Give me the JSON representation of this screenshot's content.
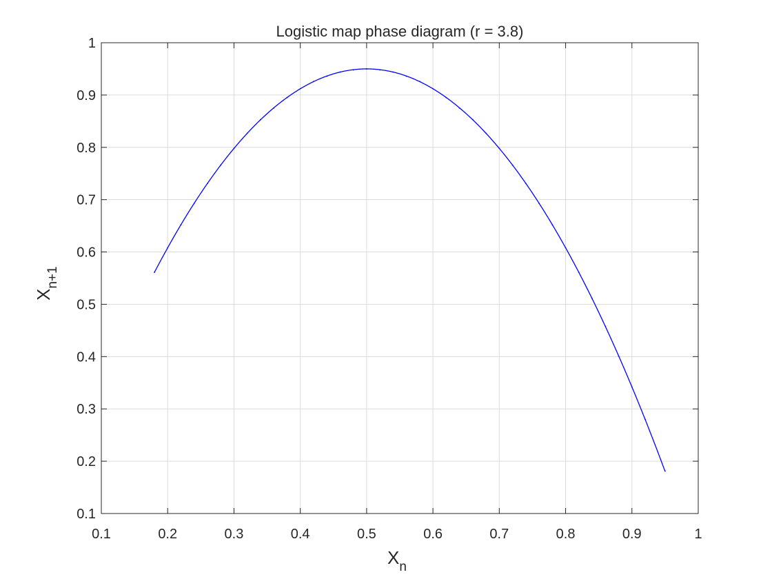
{
  "chart_data": {
    "type": "scatter",
    "title": "Logistic map phase diagram (r = 3.8)",
    "xlabel": {
      "base": "X",
      "subscript": "n"
    },
    "ylabel": {
      "base": "X",
      "subscript": "n+1"
    },
    "xlim": [
      0.1,
      1
    ],
    "ylim": [
      0.1,
      1
    ],
    "xticks": [
      0.1,
      0.2,
      0.3,
      0.4,
      0.5,
      0.6,
      0.7,
      0.8,
      0.9,
      1
    ],
    "yticks": [
      0.1,
      0.2,
      0.3,
      0.4,
      0.5,
      0.6,
      0.7,
      0.8,
      0.9,
      1
    ],
    "xtick_labels": [
      "0.1",
      "0.2",
      "0.3",
      "0.4",
      "0.5",
      "0.6",
      "0.7",
      "0.8",
      "0.9",
      "1"
    ],
    "ytick_labels": [
      "0.1",
      "0.2",
      "0.3",
      "0.4",
      "0.5",
      "0.6",
      "0.7",
      "0.8",
      "0.9",
      "1"
    ],
    "grid": true,
    "series": [
      {
        "color": "#0000ff",
        "marker": "point",
        "r": 3.8,
        "x": [
          0.18,
          0.2,
          0.22,
          0.24,
          0.26,
          0.28,
          0.3,
          0.32,
          0.34,
          0.36,
          0.38,
          0.4,
          0.42,
          0.44,
          0.46,
          0.48,
          0.5,
          0.52,
          0.54,
          0.56,
          0.58,
          0.6,
          0.62,
          0.64,
          0.66,
          0.68,
          0.7,
          0.72,
          0.74,
          0.76,
          0.78,
          0.8,
          0.82,
          0.84,
          0.86,
          0.88,
          0.9,
          0.92,
          0.95
        ],
        "y": [
          0.561,
          0.608,
          0.652,
          0.693,
          0.731,
          0.766,
          0.798,
          0.827,
          0.853,
          0.875,
          0.895,
          0.912,
          0.926,
          0.936,
          0.944,
          0.948,
          0.95,
          0.948,
          0.944,
          0.936,
          0.926,
          0.912,
          0.895,
          0.875,
          0.853,
          0.827,
          0.798,
          0.766,
          0.731,
          0.693,
          0.652,
          0.608,
          0.561,
          0.511,
          0.458,
          0.401,
          0.342,
          0.28,
          0.181
        ]
      }
    ]
  }
}
